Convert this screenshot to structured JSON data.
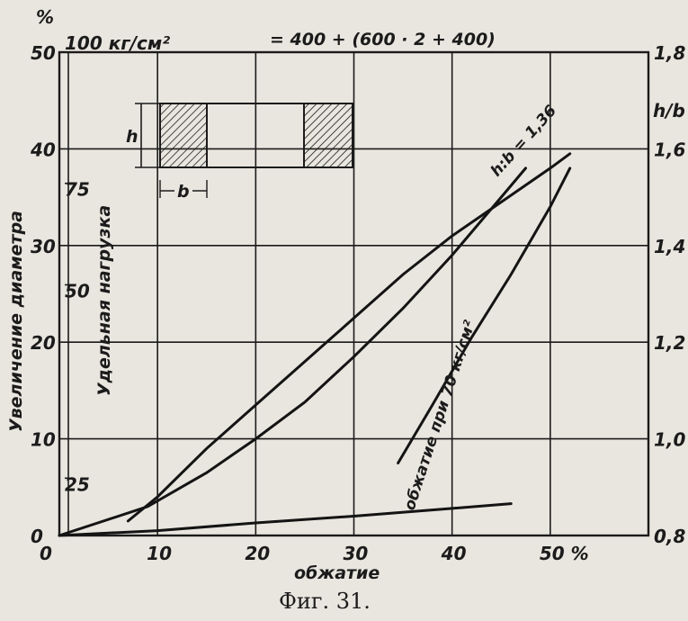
{
  "figure": {
    "caption": "Фиг. 31.",
    "text_fragment": "= 400 + (600 · 2 + 400)"
  },
  "chart_data": {
    "type": "line",
    "xlabel": "обжатие",
    "ylabel_left": "Увеличение диаметра",
    "ylabel_left_unit": "%",
    "ylabel_right_unit": "h/b",
    "ylabel_load": "Удельная нагрузка",
    "load_top_label": "100 кг/см²",
    "xlim": [
      0,
      60
    ],
    "ylim": [
      0,
      50
    ],
    "x_ticks": [
      "0",
      "10",
      "20",
      "30",
      "40",
      "50 %"
    ],
    "y_ticks_left": [
      "0",
      "10",
      "20",
      "30",
      "40",
      "50"
    ],
    "y_ticks_right": [
      "0,8",
      "1,0",
      "1,2",
      "1,4",
      "1,6",
      "1,8"
    ],
    "load_ticks": [
      "25",
      "50",
      "75"
    ],
    "inset": {
      "height_label": "h",
      "width_label": "b"
    },
    "series": [
      {
        "name": "h:b = 1,36",
        "values": [
          [
            0,
            0
          ],
          [
            9,
            3
          ],
          [
            15,
            6.5
          ],
          [
            20,
            10
          ],
          [
            25,
            13.8
          ],
          [
            30,
            18.5
          ],
          [
            35,
            23.5
          ],
          [
            40,
            29
          ],
          [
            45,
            35
          ],
          [
            47.5,
            38
          ]
        ]
      },
      {
        "x": [
          7,
          10,
          15,
          20,
          25,
          30,
          35,
          40,
          45,
          50,
          52
        ],
        "y": [
          1.5,
          4,
          9,
          13.5,
          18,
          22.5,
          27,
          31,
          34.5,
          38,
          39.5
        ]
      },
      {
        "name": "обжатие при 70 кг/см²",
        "x": [
          34.5,
          38,
          42,
          46,
          50,
          52
        ],
        "y": [
          7.5,
          13.5,
          20.5,
          27,
          34,
          38
        ]
      },
      {
        "x": [
          0,
          10,
          20,
          30,
          40,
          46
        ],
        "y": [
          0,
          0.5,
          1.3,
          2,
          2.8,
          3.3
        ]
      }
    ]
  }
}
